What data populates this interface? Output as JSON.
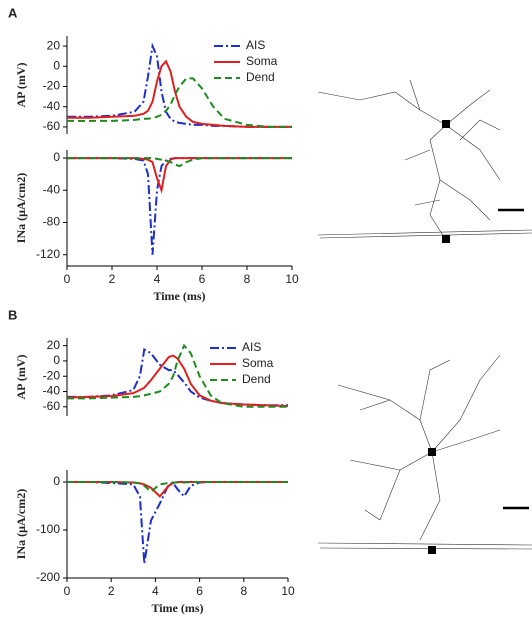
{
  "chart_data": [
    {
      "type": "line",
      "panel": "A",
      "ylabel": "AP (mV)",
      "xlim": [
        0,
        10
      ],
      "ylim": [
        -67,
        30
      ],
      "yticks": [
        -60,
        -40,
        -20,
        0,
        20
      ],
      "legend": "upper right",
      "x": [
        0,
        1,
        2,
        3,
        3.4,
        3.6,
        3.8,
        4.0,
        4.2,
        4.4,
        4.6,
        4.8,
        5.0,
        5.3,
        5.6,
        6.0,
        6.5,
        7,
        8,
        9,
        10
      ],
      "series": [
        {
          "name": "AIS",
          "color": "#1c2fc9",
          "dash": "dashdot",
          "values": [
            -50,
            -50,
            -49,
            -45,
            -35,
            -10,
            20,
            10,
            -25,
            -45,
            -52,
            -55,
            -56,
            -57,
            -58,
            -58,
            -59,
            -59,
            -60,
            -60,
            -60
          ]
        },
        {
          "name": "Soma",
          "color": "#e02020",
          "dash": "solid",
          "values": [
            -51,
            -51,
            -50,
            -49,
            -47,
            -44,
            -35,
            -15,
            0,
            5,
            -5,
            -25,
            -40,
            -50,
            -55,
            -57,
            -58,
            -59,
            -60,
            -60,
            -60
          ]
        },
        {
          "name": "Dend",
          "color": "#1f8a1f",
          "dash": "dashed",
          "values": [
            -54,
            -54,
            -54,
            -53,
            -52,
            -52,
            -51,
            -50,
            -48,
            -44,
            -38,
            -28,
            -20,
            -12,
            -12,
            -22,
            -40,
            -52,
            -58,
            -60,
            -60
          ]
        }
      ]
    },
    {
      "type": "line",
      "ylabel": "INa (μA/cm2)",
      "xlabel": "Time (ms)",
      "xlim": [
        0,
        10
      ],
      "ylim": [
        -134,
        10
      ],
      "xticks": [
        0,
        2,
        4,
        6,
        8,
        10
      ],
      "yticks": [
        -120,
        -80,
        -40,
        0
      ],
      "x": [
        0,
        1,
        2,
        3,
        3.4,
        3.6,
        3.8,
        4.0,
        4.2,
        4.4,
        4.6,
        4.8,
        5.0,
        5.3,
        5.6,
        6.0,
        6.5,
        7,
        8,
        9,
        10
      ],
      "series": [
        {
          "name": "AIS",
          "color": "#1c2fc9",
          "dash": "dashdot",
          "values": [
            0,
            0,
            0,
            -1,
            -3,
            -20,
            -120,
            -40,
            -10,
            -3,
            -1,
            0,
            0,
            0,
            0,
            0,
            0,
            0,
            0,
            0,
            0
          ]
        },
        {
          "name": "Soma",
          "color": "#e02020",
          "dash": "solid",
          "values": [
            0,
            0,
            0,
            0,
            -1,
            -2,
            -5,
            -25,
            -40,
            -10,
            -2,
            0,
            0,
            0,
            0,
            0,
            0,
            0,
            0,
            0,
            0
          ]
        },
        {
          "name": "Dend",
          "color": "#1f8a1f",
          "dash": "dashed",
          "values": [
            0,
            0,
            0,
            0,
            0,
            0,
            0,
            -1,
            -2,
            -3,
            -5,
            -8,
            -10,
            -5,
            -2,
            0,
            0,
            0,
            0,
            0,
            0
          ]
        }
      ]
    },
    {
      "type": "line",
      "panel": "B",
      "ylabel": "AP (mV)",
      "xlim": [
        0,
        10
      ],
      "ylim": [
        -72,
        30
      ],
      "yticks": [
        -60,
        -40,
        -20,
        0,
        20
      ],
      "legend": "upper right",
      "x": [
        0,
        1,
        2,
        3,
        3.3,
        3.5,
        3.8,
        4.2,
        4.6,
        4.8,
        5.0,
        5.3,
        5.6,
        6.0,
        6.5,
        7,
        8,
        9,
        10
      ],
      "series": [
        {
          "name": "AIS",
          "color": "#1c2fc9",
          "dash": "dashdot",
          "values": [
            -47,
            -47,
            -45,
            -38,
            -20,
            15,
            10,
            -5,
            -12,
            -12,
            -18,
            -28,
            -40,
            -48,
            -52,
            -55,
            -57,
            -58,
            -58
          ]
        },
        {
          "name": "Soma",
          "color": "#e02020",
          "dash": "solid",
          "values": [
            -48,
            -47,
            -46,
            -42,
            -38,
            -35,
            -25,
            -10,
            5,
            7,
            3,
            -10,
            -30,
            -45,
            -52,
            -55,
            -57,
            -58,
            -59
          ]
        },
        {
          "name": "Dend",
          "color": "#1f8a1f",
          "dash": "dashed",
          "values": [
            -49,
            -49,
            -48,
            -47,
            -46,
            -45,
            -43,
            -40,
            -30,
            -20,
            0,
            20,
            10,
            -20,
            -45,
            -55,
            -60,
            -60,
            -60
          ]
        }
      ]
    },
    {
      "type": "line",
      "ylabel": "INa (μA/cm2)",
      "xlabel": "Time (ms)",
      "xlim": [
        0,
        10
      ],
      "ylim": [
        -200,
        25
      ],
      "xticks": [
        0,
        2,
        4,
        6,
        8,
        10
      ],
      "yticks": [
        -200,
        -100,
        0
      ],
      "x": [
        0,
        1,
        2,
        3,
        3.3,
        3.5,
        3.8,
        4.2,
        4.6,
        4.8,
        5.0,
        5.3,
        5.6,
        6.0,
        6.5,
        7,
        8,
        9,
        10
      ],
      "series": [
        {
          "name": "AIS",
          "color": "#1c2fc9",
          "dash": "dashdot",
          "values": [
            0,
            0,
            -2,
            -5,
            -30,
            -170,
            -80,
            -45,
            -5,
            -2,
            -15,
            -30,
            -8,
            -1,
            0,
            0,
            0,
            0,
            0
          ]
        },
        {
          "name": "Soma",
          "color": "#e02020",
          "dash": "solid",
          "values": [
            0,
            0,
            0,
            -1,
            -3,
            -5,
            -12,
            -30,
            -8,
            -2,
            0,
            0,
            0,
            0,
            0,
            0,
            0,
            0,
            0
          ]
        },
        {
          "name": "Dend",
          "color": "#1f8a1f",
          "dash": "dashed",
          "values": [
            0,
            0,
            0,
            -1,
            -3,
            -8,
            -20,
            -5,
            -2,
            -1,
            -1,
            -1,
            0,
            0,
            0,
            0,
            0,
            0,
            0
          ]
        }
      ]
    }
  ]
}
